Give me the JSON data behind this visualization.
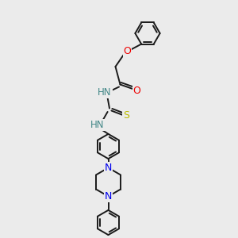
{
  "background_color": "#ebebeb",
  "bond_color": "#1a1a1a",
  "N_color": "#0000ee",
  "O_color": "#ee0000",
  "S_color": "#bbbb00",
  "HN_color": "#448888",
  "line_width": 1.4,
  "figsize": [
    3.0,
    3.0
  ],
  "dpi": 100,
  "xlim": [
    0,
    10
  ],
  "ylim": [
    0,
    10
  ],
  "ring_r": 0.52,
  "pip_r": 0.6
}
